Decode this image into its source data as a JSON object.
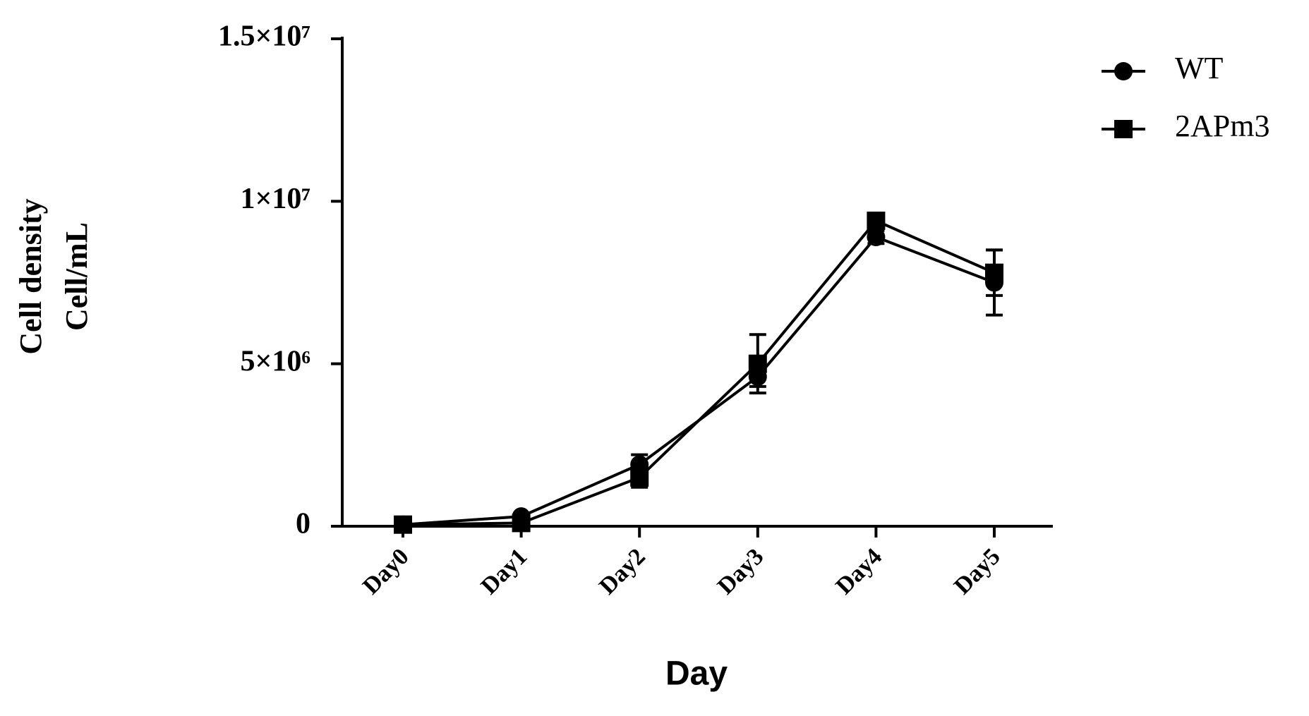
{
  "chart_data": {
    "type": "line",
    "ylabel": [
      "Cell density",
      "Cell/mL"
    ],
    "xlabel": "Day",
    "categories": [
      "Day0",
      "Day1",
      "Day2",
      "Day3",
      "Day4",
      "Day5"
    ],
    "series": [
      {
        "name": "WT",
        "color": "#000000",
        "marker": "circle",
        "values": [
          50000,
          300000,
          1900000,
          4600000,
          8900000,
          7500000
        ],
        "errors": [
          50000,
          50000,
          300000,
          300000,
          200000,
          1000000
        ]
      },
      {
        "name": "2APm3",
        "color": "#000000",
        "marker": "square",
        "values": [
          50000,
          100000,
          1500000,
          5000000,
          9400000,
          7800000
        ],
        "errors": [
          50000,
          50000,
          300000,
          900000,
          200000,
          700000
        ]
      }
    ],
    "ylim": [
      0,
      15000000
    ],
    "yticks": [
      0,
      {
        "value": 5000000,
        "label": "5×10⁶"
      },
      {
        "value": 10000000,
        "label": "1×10⁷"
      },
      {
        "value": 15000000,
        "label": "1.5×10⁷"
      }
    ],
    "legend": "top-right"
  }
}
